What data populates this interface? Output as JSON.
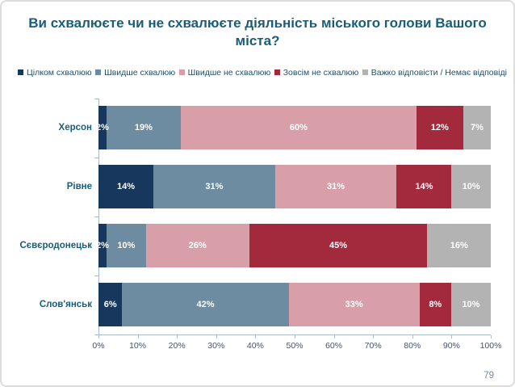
{
  "page_number": "79",
  "colors": {
    "title_text": "#175e7a",
    "legend_text": "#1f4e63",
    "axis_labels": "#44546a",
    "axis_line": "#a9bbc9",
    "value_labels": "#ffffff",
    "page_number": "#7b8a97"
  },
  "chart_data": {
    "type": "bar",
    "subtype": "horizontal-stacked",
    "title": "Ви схвалюєте чи не схвалюєте діяльність міського голови Вашого міста?",
    "categories": [
      "Херсон",
      "Рівне",
      "Сєвєродонецьк",
      "Слов'янськ"
    ],
    "series": [
      {
        "name": "Цілком схвалюю",
        "color": "#17375d",
        "values": [
          2,
          14,
          2,
          6
        ]
      },
      {
        "name": "Швидше схвалюю",
        "color": "#6d8ca1",
        "values": [
          19,
          31,
          10,
          42
        ]
      },
      {
        "name": "Швидше не схвалюю",
        "color": "#d99fa9",
        "values": [
          60,
          31,
          26,
          33
        ]
      },
      {
        "name": "Зовсім не схвалюю",
        "color": "#a32a3c",
        "values": [
          12,
          14,
          45,
          8
        ]
      },
      {
        "name": "Важко відповісти / Немає відповіді",
        "color": "#b3b3b3",
        "values": [
          7,
          10,
          16,
          10
        ]
      }
    ],
    "value_suffix": "%",
    "legend_position": "top",
    "grid": false,
    "x_axis": {
      "min": 0,
      "max": 100,
      "tick_labels": [
        "0%",
        "10%",
        "20%",
        "30%",
        "40%",
        "50%",
        "60%",
        "70%",
        "80%",
        "90%",
        "100%"
      ]
    }
  }
}
